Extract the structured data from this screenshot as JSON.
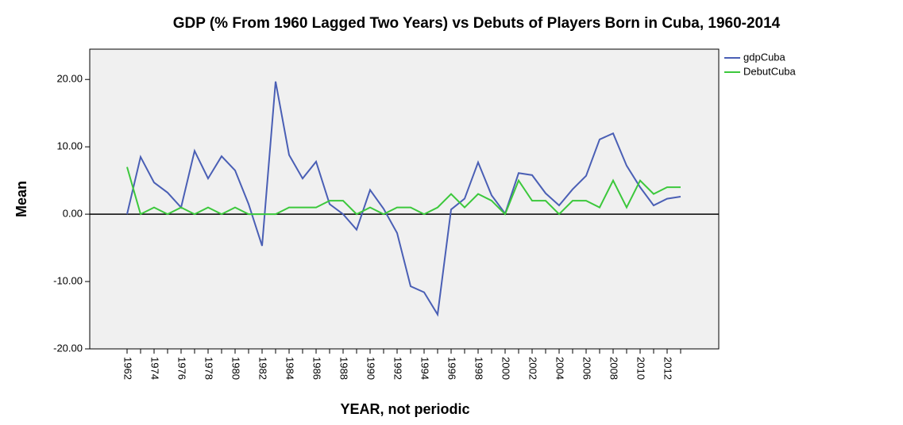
{
  "chart_data": {
    "type": "line",
    "title": "GDP (% From 1960 Lagged Two Years) vs Debuts of Players Born in Cuba, 1960-2014",
    "x_label": "YEAR, not periodic",
    "y_label": "Mean",
    "categories": [
      "1962",
      null,
      "1974",
      null,
      "1976",
      null,
      "1978",
      null,
      "1980",
      null,
      "1982",
      null,
      "1984",
      null,
      "1986",
      null,
      "1988",
      null,
      "1990",
      null,
      "1992",
      null,
      "1994",
      null,
      "1996",
      null,
      "1998",
      null,
      "2000",
      null,
      "2002",
      null,
      "2004",
      null,
      "2006",
      null,
      "2008",
      null,
      "2010",
      null,
      "2012",
      null
    ],
    "series": [
      {
        "name": "gdpCuba",
        "color": "#4a5fb5",
        "values": [
          0,
          8.5,
          4.7,
          3.2,
          1.0,
          9.4,
          5.3,
          8.6,
          6.5,
          1.5,
          -4.7,
          19.7,
          8.8,
          5.3,
          7.8,
          1.5,
          0.0,
          -2.3,
          3.6,
          0.8,
          -2.8,
          -10.7,
          -11.6,
          -14.9,
          0.7,
          2.3,
          7.7,
          2.8,
          0.1,
          6.1,
          5.8,
          3.1,
          1.3,
          3.7,
          5.7,
          11.1,
          12.0,
          7.2,
          4.0,
          1.3,
          2.3,
          2.6
        ]
      },
      {
        "name": "DebutCuba",
        "color": "#3cc83c",
        "values": [
          7,
          0,
          1,
          0,
          1,
          0,
          1,
          0,
          1,
          0,
          0,
          0,
          1,
          1,
          1,
          2,
          2,
          0,
          1,
          0,
          1,
          1,
          0,
          1,
          3,
          1,
          3,
          2,
          0,
          5,
          2,
          2,
          0,
          2,
          2,
          1,
          5,
          1,
          5,
          3,
          4,
          4
        ]
      }
    ],
    "ylim": [
      -20,
      24.5
    ],
    "yticks": [
      {
        "value": -20,
        "label": "-20.00"
      },
      {
        "value": -10,
        "label": "-10.00"
      },
      {
        "value": 0,
        "label": "0.00"
      },
      {
        "value": 10,
        "label": "10.00"
      },
      {
        "value": 20,
        "label": "20.00"
      }
    ],
    "reference_line": 0,
    "legend": "right"
  }
}
